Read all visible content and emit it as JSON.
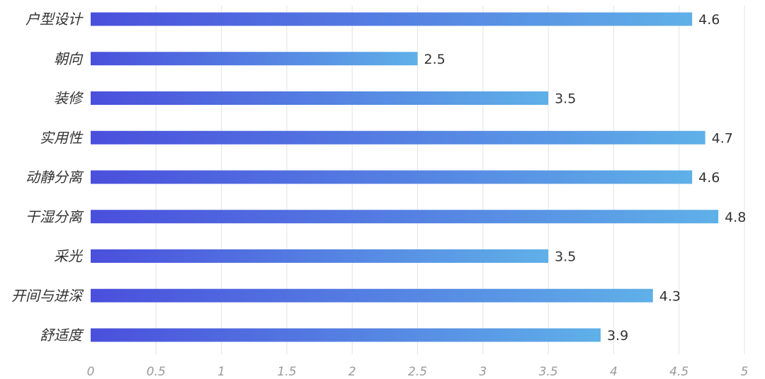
{
  "chart_data": {
    "type": "bar",
    "orientation": "horizontal",
    "categories": [
      "户型设计",
      "朝向",
      "装修",
      "实用性",
      "动静分离",
      "干湿分离",
      "采光",
      "开间与进深",
      "舒适度"
    ],
    "values": [
      4.6,
      2.5,
      3.5,
      4.7,
      4.6,
      4.8,
      3.5,
      4.3,
      3.9
    ],
    "xlim": [
      0,
      5
    ],
    "xticks": [
      "0",
      "0.5",
      "1",
      "1.5",
      "2",
      "2.5",
      "3",
      "3.5",
      "4",
      "4.5",
      "5"
    ],
    "title": "",
    "xlabel": "",
    "ylabel": "",
    "grid": "vertical",
    "legend": "none",
    "colors": {
      "bar_start": "#4a4fdc",
      "bar_end": "#5fb0e8",
      "grid": "#e3e3e3",
      "text": "#333333",
      "tick": "#9a9a9a"
    }
  }
}
